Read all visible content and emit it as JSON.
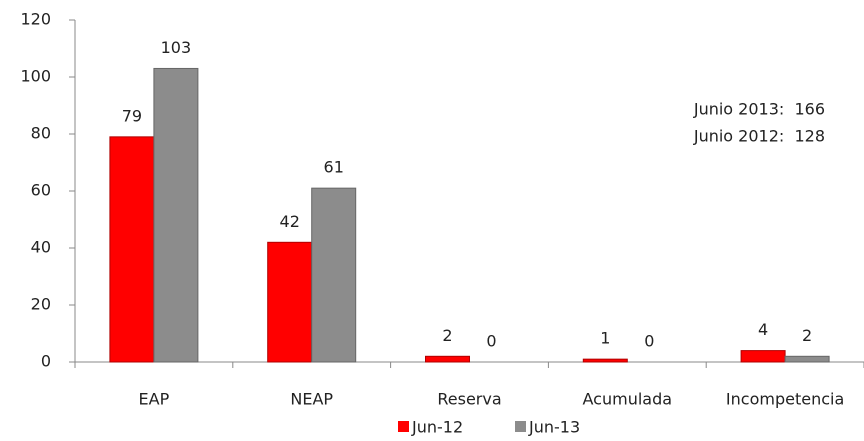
{
  "chart_data": {
    "type": "bar",
    "categories": [
      "EAP",
      "NEAP",
      "Reserva",
      "Acumulada",
      "Incompetencia"
    ],
    "series": [
      {
        "name": "Jun-12",
        "color": "#ff0000",
        "values": [
          79,
          42,
          2,
          1,
          4
        ]
      },
      {
        "name": "Jun-13",
        "color": "#8c8c8c",
        "values": [
          103,
          61,
          0,
          0,
          2
        ]
      }
    ],
    "ylim": [
      0,
      120
    ],
    "yticks": [
      0,
      20,
      40,
      60,
      80,
      100,
      120
    ],
    "grid": false,
    "legend": "bottom",
    "annotations": [
      "Junio 2013:  166",
      "Junio 2012:  128"
    ]
  }
}
